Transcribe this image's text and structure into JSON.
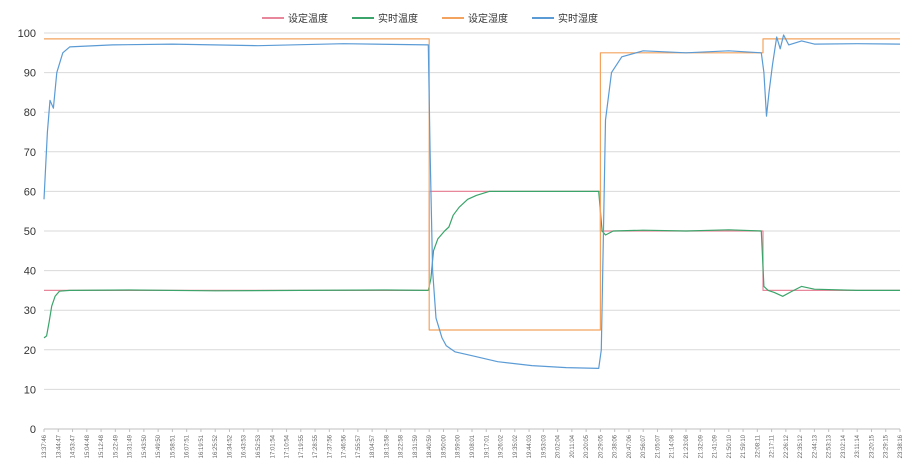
{
  "chart_data": {
    "type": "line",
    "title": "",
    "xlabel": "",
    "ylabel": "",
    "ylim": [
      0,
      100
    ],
    "yticks": [
      0,
      10,
      20,
      30,
      40,
      50,
      60,
      70,
      80,
      90,
      100
    ],
    "grid": true,
    "legend_position": "top-center",
    "x_domain": [
      0,
      100
    ],
    "x_tick_labels": [
      "13:37:46",
      "13:44:47",
      "14:53:47",
      "15:04:48",
      "15:12:48",
      "15:22:49",
      "15:31:49",
      "15:43:50",
      "15:49:50",
      "15:58:51",
      "16:07:51",
      "16:19:51",
      "16:25:52",
      "16:34:52",
      "16:43:53",
      "16:52:53",
      "17:01:54",
      "17:10:54",
      "17:19:55",
      "17:28:55",
      "17:37:56",
      "17:46:56",
      "17:55:57",
      "18:04:57",
      "18:13:58",
      "18:22:58",
      "18:31:59",
      "18:40:59",
      "18:50:00",
      "18:59:00",
      "19:08:01",
      "19:17:01",
      "19:26:02",
      "19:35:02",
      "19:44:03",
      "19:53:03",
      "20:02:04",
      "20:11:04",
      "20:20:05",
      "20:29:05",
      "20:38:06",
      "20:47:06",
      "20:56:07",
      "21:05:07",
      "21:14:08",
      "21:23:08",
      "21:32:09",
      "21:41:09",
      "21:50:10",
      "21:59:10",
      "22:08:11",
      "22:17:11",
      "22:26:12",
      "22:35:12",
      "22:44:13",
      "22:53:13",
      "23:02:14",
      "23:11:14",
      "23:20:15",
      "23:29:15",
      "23:38:16"
    ],
    "series": [
      {
        "name": "设定温度",
        "color": "#e8879c",
        "points": [
          [
            0,
            35
          ],
          [
            45,
            35
          ],
          [
            45,
            60
          ],
          [
            65,
            60
          ],
          [
            65,
            50
          ],
          [
            84,
            50
          ],
          [
            84,
            35
          ],
          [
            100,
            35
          ]
        ]
      },
      {
        "name": "实时温度",
        "color": "#3aa46a",
        "points": [
          [
            0,
            23
          ],
          [
            0.3,
            23.5
          ],
          [
            0.6,
            27
          ],
          [
            0.9,
            31
          ],
          [
            1.3,
            33.5
          ],
          [
            1.8,
            34.8
          ],
          [
            3,
            35
          ],
          [
            10,
            35.1
          ],
          [
            20,
            34.9
          ],
          [
            30,
            35
          ],
          [
            40,
            35.1
          ],
          [
            44.9,
            35
          ],
          [
            45.2,
            38
          ],
          [
            45.5,
            45
          ],
          [
            46,
            48
          ],
          [
            46.8,
            50
          ],
          [
            47.3,
            51
          ],
          [
            47.8,
            54
          ],
          [
            48.5,
            56
          ],
          [
            49.5,
            58
          ],
          [
            50.5,
            59
          ],
          [
            52,
            60
          ],
          [
            55,
            60
          ],
          [
            60,
            60
          ],
          [
            64.8,
            60
          ],
          [
            65.2,
            50
          ],
          [
            65.6,
            49
          ],
          [
            66.5,
            50
          ],
          [
            70,
            50.2
          ],
          [
            75,
            50
          ],
          [
            80,
            50.3
          ],
          [
            83.8,
            50
          ],
          [
            84.1,
            36
          ],
          [
            84.6,
            35
          ],
          [
            85.3,
            34.5
          ],
          [
            86.3,
            33.5
          ],
          [
            87.3,
            34.7
          ],
          [
            88.5,
            36
          ],
          [
            90,
            35.3
          ],
          [
            95,
            35
          ],
          [
            100,
            35
          ]
        ]
      },
      {
        "name": "设定湿度",
        "color": "#f4a35f",
        "points": [
          [
            0,
            98.5
          ],
          [
            45,
            98.5
          ],
          [
            45,
            25
          ],
          [
            65,
            25
          ],
          [
            65,
            95
          ],
          [
            84,
            95
          ],
          [
            84,
            98.5
          ],
          [
            100,
            98.5
          ]
        ]
      },
      {
        "name": "实时湿度",
        "color": "#5b9bd5",
        "points": [
          [
            0,
            58
          ],
          [
            0.4,
            75
          ],
          [
            0.7,
            83
          ],
          [
            1.1,
            81
          ],
          [
            1.5,
            90
          ],
          [
            2.2,
            95
          ],
          [
            3,
            96.5
          ],
          [
            8,
            97
          ],
          [
            15,
            97.2
          ],
          [
            25,
            96.8
          ],
          [
            35,
            97.3
          ],
          [
            44.9,
            97
          ],
          [
            45.1,
            70
          ],
          [
            45.4,
            40
          ],
          [
            45.8,
            28
          ],
          [
            46.5,
            23
          ],
          [
            47,
            21
          ],
          [
            48,
            19.5
          ],
          [
            50,
            18.5
          ],
          [
            53,
            17
          ],
          [
            57,
            16
          ],
          [
            61,
            15.5
          ],
          [
            64.8,
            15.3
          ],
          [
            65.1,
            20
          ],
          [
            65.6,
            78
          ],
          [
            66.3,
            90
          ],
          [
            67.5,
            94
          ],
          [
            70,
            95.5
          ],
          [
            75,
            95
          ],
          [
            80,
            95.5
          ],
          [
            83.8,
            95
          ],
          [
            84.1,
            90
          ],
          [
            84.4,
            79
          ],
          [
            84.7,
            85
          ],
          [
            85.1,
            92
          ],
          [
            85.6,
            99
          ],
          [
            86,
            96
          ],
          [
            86.4,
            99.5
          ],
          [
            87,
            97
          ],
          [
            88.5,
            98
          ],
          [
            90,
            97.2
          ],
          [
            95,
            97.3
          ],
          [
            100,
            97.2
          ]
        ]
      }
    ]
  }
}
